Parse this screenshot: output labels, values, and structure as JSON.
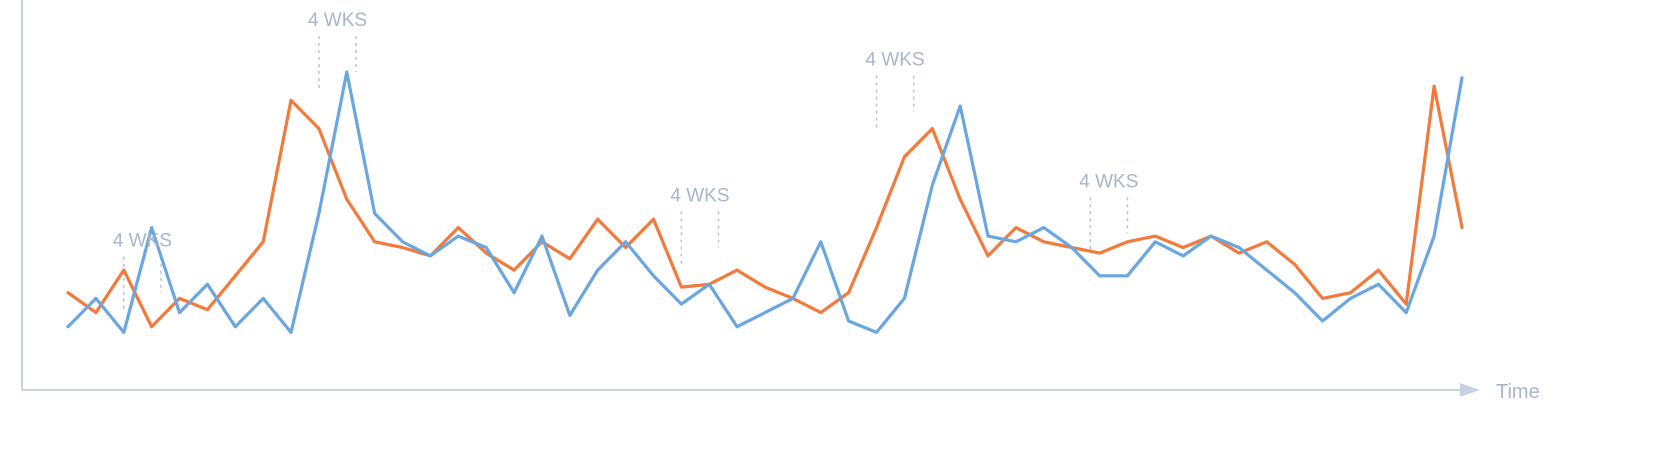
{
  "chart_data": {
    "type": "line",
    "title": "",
    "xlabel": "Time",
    "ylabel": "",
    "xlim": [
      0,
      150
    ],
    "ylim": [
      0,
      100
    ],
    "grid": false,
    "legend": "none",
    "series": [
      {
        "color": "#f47a3c",
        "x": [
          0,
          3,
          6,
          9,
          12,
          15,
          18,
          21,
          24,
          27,
          30,
          33,
          36,
          39,
          42,
          45,
          48,
          51,
          54,
          57,
          60,
          63,
          66,
          69,
          72,
          75,
          78,
          81,
          84,
          87,
          90,
          93,
          96,
          99,
          102,
          105,
          108,
          111,
          114,
          117,
          120,
          123,
          126,
          129,
          132,
          135,
          138,
          141,
          144,
          147,
          150
        ],
        "y": [
          22,
          15,
          30,
          10,
          20,
          16,
          28,
          40,
          90,
          80,
          55,
          40,
          38,
          35,
          45,
          36,
          30,
          40,
          34,
          48,
          38,
          48,
          24,
          25,
          30,
          24,
          20,
          15,
          22,
          45,
          70,
          80,
          55,
          35,
          45,
          40,
          38,
          36,
          40,
          42,
          38,
          42,
          36,
          40,
          32,
          20,
          22,
          30,
          18,
          95,
          45
        ]
      },
      {
        "color": "#6aa6e0",
        "x": [
          0,
          3,
          6,
          9,
          12,
          15,
          18,
          21,
          24,
          27,
          30,
          33,
          36,
          39,
          42,
          45,
          48,
          51,
          54,
          57,
          60,
          63,
          66,
          69,
          72,
          75,
          78,
          81,
          84,
          87,
          90,
          93,
          96,
          99,
          102,
          105,
          108,
          111,
          114,
          117,
          120,
          123,
          126,
          129,
          132,
          135,
          138,
          141,
          144,
          147,
          150
        ],
        "y": [
          10,
          20,
          8,
          45,
          15,
          25,
          10,
          20,
          8,
          50,
          100,
          50,
          40,
          35,
          42,
          38,
          22,
          42,
          14,
          30,
          40,
          28,
          18,
          25,
          10,
          15,
          20,
          40,
          12,
          8,
          20,
          60,
          88,
          42,
          40,
          45,
          38,
          28,
          28,
          40,
          35,
          42,
          38,
          30,
          22,
          12,
          20,
          25,
          15,
          42,
          98
        ]
      }
    ],
    "annotations": [
      {
        "label": "4 WKS",
        "x_start": 6,
        "x_end": 10,
        "y": 22
      },
      {
        "label": "4 WKS",
        "x_start": 27,
        "x_end": 31,
        "y": 100
      },
      {
        "label": "4 WKS",
        "x_start": 66,
        "x_end": 70,
        "y": 38
      },
      {
        "label": "4 WKS",
        "x_start": 87,
        "x_end": 91,
        "y": 86
      },
      {
        "label": "4 WKS",
        "x_start": 110,
        "x_end": 114,
        "y": 43
      }
    ]
  }
}
